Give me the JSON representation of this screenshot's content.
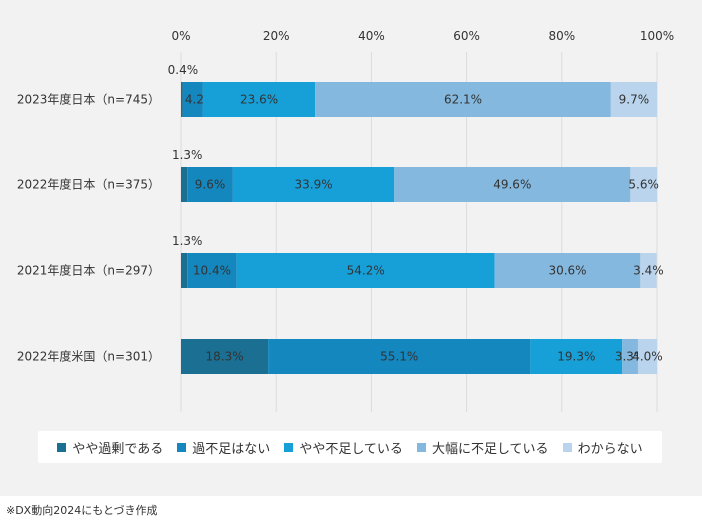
{
  "chart_data": {
    "type": "bar",
    "orientation": "horizontal",
    "stacked": true,
    "xlim": [
      0,
      100
    ],
    "x_ticks": [
      "0%",
      "20%",
      "40%",
      "60%",
      "80%",
      "100%"
    ],
    "x_tick_values": [
      0,
      20,
      40,
      60,
      80,
      100
    ],
    "grid": true,
    "legend_position": "bottom",
    "categories": [
      "2023年度日本（n=745）",
      "2022年度日本（n=375）",
      "2021年度日本（n=297）",
      "2022年度米国（n=301）"
    ],
    "series": [
      {
        "name": "やや過剰である",
        "color": "#1a6f93",
        "values": [
          0.4,
          1.3,
          1.3,
          18.3
        ],
        "labels": [
          "0.4%",
          "1.3%",
          "1.3%",
          "18.3%"
        ]
      },
      {
        "name": "過不足はない",
        "color": "#1487bf",
        "values": [
          4.2,
          9.6,
          10.4,
          55.1
        ],
        "labels": [
          "4.2%",
          "9.6%",
          "10.4%",
          "55.1%"
        ]
      },
      {
        "name": "やや不足している",
        "color": "#17a0d8",
        "values": [
          23.6,
          33.9,
          54.2,
          19.3
        ],
        "labels": [
          "23.6%",
          "33.9%",
          "54.2%",
          "19.3%"
        ]
      },
      {
        "name": "大幅に不足している",
        "color": "#84b8de",
        "values": [
          62.1,
          49.6,
          30.6,
          3.3
        ],
        "labels": [
          "62.1%",
          "49.6%",
          "30.6%",
          "3.3%"
        ]
      },
      {
        "name": "わからない",
        "color": "#b9d4ec",
        "values": [
          9.7,
          5.6,
          3.4,
          4.0
        ],
        "labels": [
          "9.7%",
          "5.6%",
          "3.4%",
          "4.0%"
        ]
      }
    ]
  },
  "footnote": "※DX動向2024にもとづき作成"
}
